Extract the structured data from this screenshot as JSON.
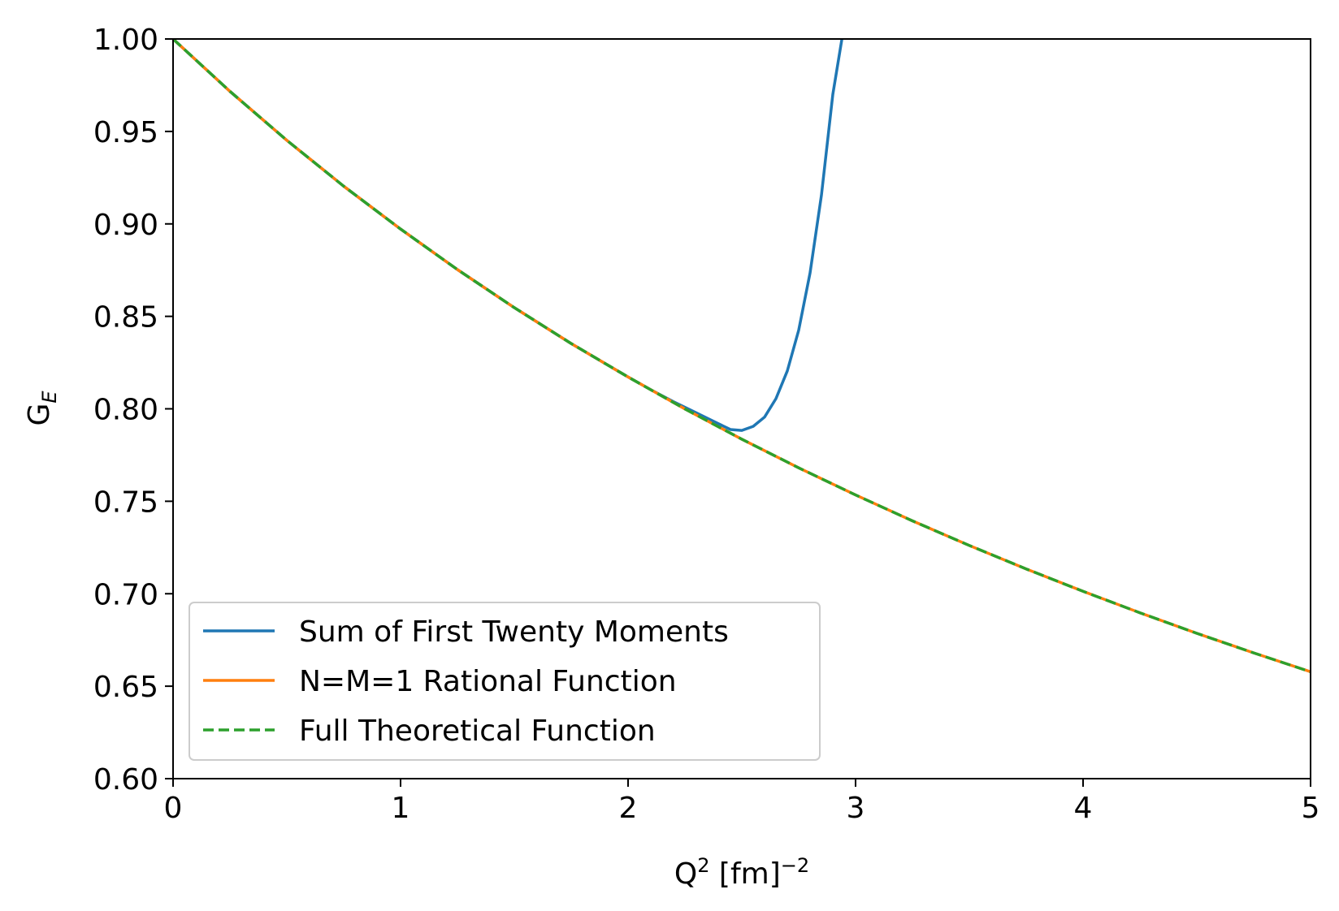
{
  "chart_data": {
    "type": "line",
    "xlabel": {
      "base": "Q",
      "sup1": "2",
      "mid": " [fm]",
      "sup2": "−2"
    },
    "ylabel": {
      "base": "G",
      "sub": "E"
    },
    "xlim": [
      0,
      5
    ],
    "ylim": [
      0.6,
      1.0
    ],
    "xticks": [
      0,
      1,
      2,
      3,
      4,
      5
    ],
    "xtick_labels": [
      "0",
      "1",
      "2",
      "3",
      "4",
      "5"
    ],
    "yticks": [
      0.6,
      0.65,
      0.7,
      0.75,
      0.8,
      0.85,
      0.9,
      0.95,
      1.0
    ],
    "ytick_labels": [
      "0.60",
      "0.65",
      "0.70",
      "0.75",
      "0.80",
      "0.85",
      "0.90",
      "0.95",
      "1.00"
    ],
    "grid": false,
    "legend_position": "lower-left",
    "series": [
      {
        "name": "Sum of First Twenty Moments",
        "color": "#1f77b4",
        "style": "solid",
        "x": [
          0,
          0.25,
          0.5,
          0.75,
          1.0,
          1.25,
          1.5,
          1.75,
          2.0,
          2.1,
          2.2,
          2.3,
          2.4,
          2.45,
          2.5,
          2.55,
          2.6,
          2.65,
          2.7,
          2.75,
          2.8,
          2.85,
          2.9,
          2.94
        ],
        "y": [
          1.0,
          0.9717,
          0.9452,
          0.9204,
          0.8972,
          0.8753,
          0.8547,
          0.8353,
          0.8172,
          0.8103,
          0.8038,
          0.7978,
          0.7918,
          0.7888,
          0.7883,
          0.7905,
          0.7955,
          0.8055,
          0.8205,
          0.8425,
          0.8735,
          0.9155,
          0.97,
          1.0
        ]
      },
      {
        "name": "N=M=1 Rational Function",
        "color": "#ff7f0e",
        "style": "solid",
        "x": [
          0,
          0.25,
          0.5,
          0.75,
          1.0,
          1.25,
          1.5,
          1.75,
          2.0,
          2.25,
          2.5,
          2.75,
          3.0,
          3.25,
          3.5,
          3.75,
          4.0,
          4.25,
          4.5,
          4.75,
          5.0
        ],
        "y": [
          1.0,
          0.9717,
          0.9452,
          0.9204,
          0.8972,
          0.8753,
          0.8547,
          0.8353,
          0.8172,
          0.7999,
          0.7836,
          0.7681,
          0.7534,
          0.7394,
          0.7261,
          0.7134,
          0.7013,
          0.6897,
          0.6786,
          0.668,
          0.6578
        ]
      },
      {
        "name": "Full Theoretical Function",
        "color": "#2ca02c",
        "style": "dashed",
        "x": [
          0,
          0.25,
          0.5,
          0.75,
          1.0,
          1.25,
          1.5,
          1.75,
          2.0,
          2.25,
          2.5,
          2.75,
          3.0,
          3.25,
          3.5,
          3.75,
          4.0,
          4.25,
          4.5,
          4.75,
          5.0
        ],
        "y": [
          1.0,
          0.9717,
          0.9452,
          0.9204,
          0.8972,
          0.8753,
          0.8547,
          0.8353,
          0.8172,
          0.7999,
          0.7836,
          0.7681,
          0.7534,
          0.7394,
          0.7261,
          0.7134,
          0.7013,
          0.6897,
          0.6786,
          0.668,
          0.6578
        ]
      }
    ]
  }
}
